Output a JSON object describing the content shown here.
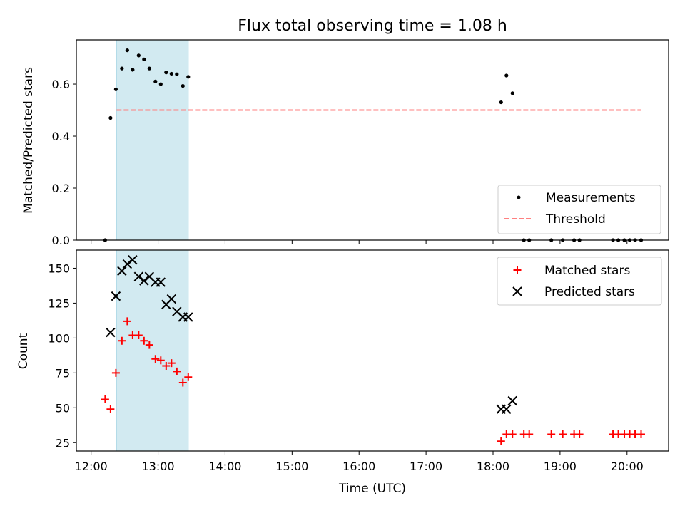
{
  "chart_data": [
    {
      "type": "scatter",
      "title": "Flux total observing time = 1.08 h",
      "xlabel": "",
      "ylabel": "Matched/Predicted stars",
      "ylim": [
        0,
        0.77
      ],
      "yticks": [
        0.0,
        0.2,
        0.4,
        0.6
      ],
      "ytick_labels": [
        "0.0",
        "0.2",
        "0.4",
        "0.6"
      ],
      "x_ticks_hours": [
        12,
        13,
        14,
        15,
        16,
        17,
        18,
        19,
        20
      ],
      "xlim_hours": [
        11.78,
        20.62
      ],
      "shaded_span_hours": [
        12.38,
        13.45
      ],
      "shaded_color": "#add8e6",
      "legend_position": "lower right",
      "series": [
        {
          "name": "Measurements",
          "marker": "dot",
          "color": "#000000",
          "points": [
            [
              12.21,
              0.0
            ],
            [
              12.29,
              0.47
            ],
            [
              12.37,
              0.58
            ],
            [
              12.46,
              0.66
            ],
            [
              12.54,
              0.73
            ],
            [
              12.62,
              0.655
            ],
            [
              12.71,
              0.71
            ],
            [
              12.79,
              0.695
            ],
            [
              12.87,
              0.66
            ],
            [
              12.96,
              0.61
            ],
            [
              13.04,
              0.6
            ],
            [
              13.12,
              0.645
            ],
            [
              13.2,
              0.64
            ],
            [
              13.28,
              0.638
            ],
            [
              13.37,
              0.593
            ],
            [
              13.45,
              0.628
            ],
            [
              18.12,
              0.53
            ],
            [
              18.2,
              0.633
            ],
            [
              18.29,
              0.565
            ],
            [
              18.46,
              0.0
            ],
            [
              18.54,
              0.0
            ],
            [
              18.87,
              0.0
            ],
            [
              19.04,
              0.0
            ],
            [
              19.21,
              0.0
            ],
            [
              19.29,
              0.0
            ],
            [
              19.79,
              0.0
            ],
            [
              19.87,
              0.0
            ],
            [
              19.96,
              0.0
            ],
            [
              20.04,
              0.0
            ],
            [
              20.12,
              0.0
            ],
            [
              20.21,
              0.0
            ]
          ]
        },
        {
          "name": "Threshold",
          "style": "dashed-line",
          "color": "#ff8080",
          "points": [
            [
              12.38,
              0.5
            ],
            [
              20.21,
              0.5
            ]
          ]
        }
      ]
    },
    {
      "type": "scatter",
      "title": "",
      "xlabel": "Time (UTC)",
      "ylabel": "Count",
      "ylim": [
        19,
        163
      ],
      "yticks": [
        25,
        50,
        75,
        100,
        125,
        150
      ],
      "ytick_labels": [
        "25",
        "50",
        "75",
        "100",
        "125",
        "150"
      ],
      "x_ticks_hours": [
        12,
        13,
        14,
        15,
        16,
        17,
        18,
        19,
        20
      ],
      "x_tick_labels": [
        "12:00",
        "13:00",
        "14:00",
        "15:00",
        "16:00",
        "17:00",
        "18:00",
        "19:00",
        "20:00"
      ],
      "xlim_hours": [
        11.78,
        20.62
      ],
      "shaded_span_hours": [
        12.38,
        13.45
      ],
      "shaded_color": "#add8e6",
      "legend_position": "upper right",
      "series": [
        {
          "name": "Matched stars",
          "marker": "plus",
          "color": "#ff0000",
          "points": [
            [
              12.21,
              56
            ],
            [
              12.29,
              49
            ],
            [
              12.37,
              75
            ],
            [
              12.46,
              98
            ],
            [
              12.54,
              112
            ],
            [
              12.62,
              102
            ],
            [
              12.71,
              102
            ],
            [
              12.79,
              98
            ],
            [
              12.87,
              95
            ],
            [
              12.96,
              85
            ],
            [
              13.04,
              84
            ],
            [
              13.12,
              80
            ],
            [
              13.2,
              82
            ],
            [
              13.28,
              76
            ],
            [
              13.37,
              68
            ],
            [
              13.45,
              72
            ],
            [
              18.12,
              26
            ],
            [
              18.2,
              31
            ],
            [
              18.29,
              31
            ],
            [
              18.46,
              31
            ],
            [
              18.54,
              31
            ],
            [
              18.87,
              31
            ],
            [
              19.04,
              31
            ],
            [
              19.21,
              31
            ],
            [
              19.29,
              31
            ],
            [
              19.79,
              31
            ],
            [
              19.87,
              31
            ],
            [
              19.96,
              31
            ],
            [
              20.04,
              31
            ],
            [
              20.12,
              31
            ],
            [
              20.21,
              31
            ]
          ]
        },
        {
          "name": "Predicted stars",
          "marker": "x",
          "color": "#000000",
          "points": [
            [
              12.29,
              104
            ],
            [
              12.37,
              130
            ],
            [
              12.46,
              148
            ],
            [
              12.54,
              153
            ],
            [
              12.62,
              156
            ],
            [
              12.71,
              144
            ],
            [
              12.79,
              141
            ],
            [
              12.87,
              144
            ],
            [
              12.96,
              140
            ],
            [
              13.04,
              140
            ],
            [
              13.12,
              124
            ],
            [
              13.2,
              128
            ],
            [
              13.28,
              119
            ],
            [
              13.37,
              115
            ],
            [
              13.45,
              115
            ],
            [
              18.12,
              49
            ],
            [
              18.2,
              49
            ],
            [
              18.29,
              55
            ]
          ]
        }
      ]
    }
  ]
}
